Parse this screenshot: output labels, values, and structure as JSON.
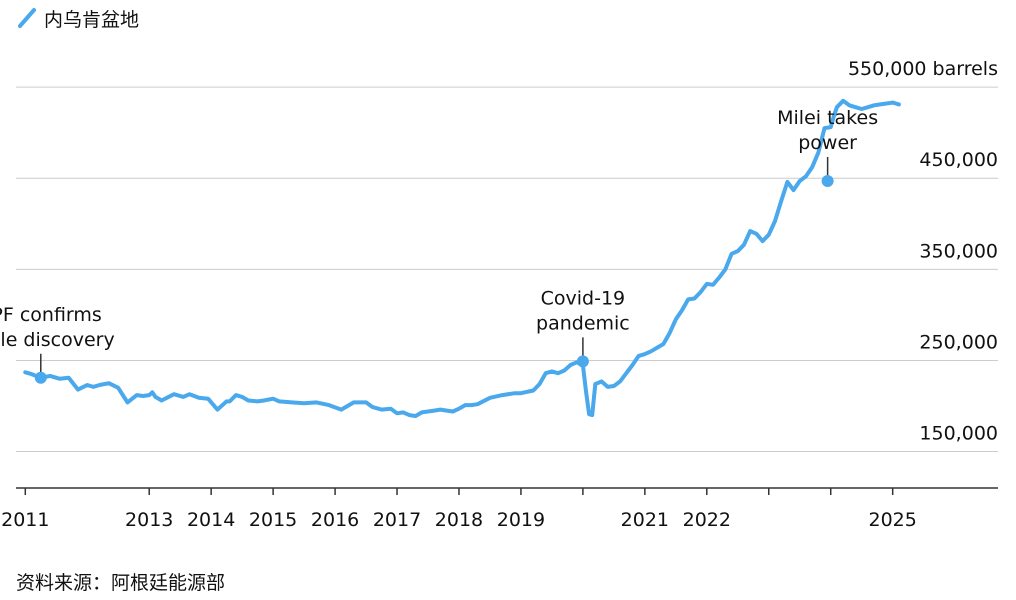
{
  "colors": {
    "series": "#4aa8ec",
    "grid": "#cccccc",
    "axis": "#333333",
    "text": "#111111"
  },
  "source": "资料来源：阿根廷能源部",
  "chart_data": {
    "type": "line",
    "title": "",
    "xlabel": "",
    "ylabel": "",
    "y_unit": "barrels",
    "ylim": [
      110000,
      560000
    ],
    "y_ticks": [
      {
        "value": 150000,
        "label": "150,000"
      },
      {
        "value": 250000,
        "label": "250,000"
      },
      {
        "value": 350000,
        "label": "350,000"
      },
      {
        "value": 450000,
        "label": "450,000"
      },
      {
        "value": 550000,
        "label": "550,000 barrels"
      }
    ],
    "xlim": [
      2010.85,
      2026.7
    ],
    "x_ticks": [
      {
        "value": 2011,
        "label": "2011"
      },
      {
        "value": 2013,
        "label": "2013"
      },
      {
        "value": 2014,
        "label": "2014"
      },
      {
        "value": 2015,
        "label": "2015"
      },
      {
        "value": 2016,
        "label": "2016"
      },
      {
        "value": 2017,
        "label": "2017"
      },
      {
        "value": 2018,
        "label": "2018"
      },
      {
        "value": 2019,
        "label": "2019"
      },
      {
        "value": 2021,
        "label": "2021"
      },
      {
        "value": 2022,
        "label": "2022"
      },
      {
        "value": 2025,
        "label": "2025"
      }
    ],
    "x_tick_marks": [
      2011,
      2013,
      2014,
      2015,
      2016,
      2017,
      2018,
      2019,
      2020,
      2021,
      2022,
      2023,
      2024,
      2025
    ],
    "grid": true,
    "legend": {
      "position": "top-left",
      "entries": [
        "内乌肯盆地"
      ]
    },
    "series": [
      {
        "name": "内乌肯盆地",
        "x": [
          2011.0,
          2011.1,
          2011.25,
          2011.4,
          2011.55,
          2011.7,
          2011.85,
          2012.0,
          2012.1,
          2012.2,
          2012.35,
          2012.5,
          2012.65,
          2012.8,
          2012.9,
          2013.0,
          2013.05,
          2013.1,
          2013.2,
          2013.4,
          2013.55,
          2013.65,
          2013.8,
          2013.95,
          2014.1,
          2014.25,
          2014.3,
          2014.4,
          2014.5,
          2014.6,
          2014.75,
          2014.85,
          2015.0,
          2015.1,
          2015.3,
          2015.5,
          2015.7,
          2015.9,
          2016.1,
          2016.3,
          2016.5,
          2016.6,
          2016.75,
          2016.9,
          2017.0,
          2017.1,
          2017.2,
          2017.3,
          2017.4,
          2017.5,
          2017.6,
          2017.7,
          2017.9,
          2018.0,
          2018.1,
          2018.2,
          2018.3,
          2018.5,
          2018.7,
          2018.9,
          2019.0,
          2019.2,
          2019.3,
          2019.4,
          2019.5,
          2019.6,
          2019.7,
          2019.8,
          2019.9,
          2020.0,
          2020.05,
          2020.1,
          2020.15,
          2020.2,
          2020.3,
          2020.4,
          2020.5,
          2020.6,
          2020.7,
          2020.8,
          2020.9,
          2021.0,
          2021.1,
          2021.3,
          2021.4,
          2021.5,
          2021.6,
          2021.7,
          2021.8,
          2021.9,
          2022.0,
          2022.1,
          2022.2,
          2022.3,
          2022.4,
          2022.5,
          2022.6,
          2022.7,
          2022.8,
          2022.9,
          2023.0,
          2023.1,
          2023.2,
          2023.3,
          2023.4,
          2023.5,
          2023.6,
          2023.7,
          2023.8,
          2023.9,
          2024.0,
          2024.05,
          2024.1,
          2024.2,
          2024.3,
          2024.4,
          2024.5,
          2024.6,
          2024.7,
          2024.8,
          2024.9,
          2025.0,
          2025.05,
          2025.1
        ],
        "y": [
          237000,
          235000,
          231000,
          233000,
          230000,
          231000,
          218000,
          223000,
          221000,
          223000,
          225000,
          220000,
          204000,
          212000,
          211000,
          212000,
          215000,
          210000,
          206000,
          213000,
          210000,
          213000,
          209000,
          208000,
          196000,
          205000,
          205000,
          212000,
          210000,
          206000,
          205000,
          206000,
          208000,
          205000,
          204000,
          203000,
          204000,
          201000,
          196000,
          204000,
          204000,
          199000,
          196000,
          197000,
          192000,
          193000,
          190000,
          189000,
          193000,
          194000,
          195000,
          196000,
          194000,
          197000,
          201000,
          201000,
          202000,
          209000,
          212000,
          214000,
          214000,
          217000,
          224000,
          236000,
          238000,
          236000,
          239000,
          245000,
          248000,
          245000,
          216000,
          191000,
          190000,
          224000,
          227000,
          221000,
          222000,
          227000,
          236000,
          245000,
          255000,
          257000,
          260000,
          268000,
          280000,
          295000,
          305000,
          317000,
          318000,
          325000,
          334000,
          333000,
          341000,
          350000,
          367000,
          370000,
          377000,
          392000,
          389000,
          381000,
          388000,
          403000,
          425000,
          446000,
          437000,
          447000,
          452000,
          462000,
          478000,
          505000,
          506000,
          518000,
          528000,
          535000,
          530000,
          528000,
          526000,
          528000,
          530000,
          531000,
          532000,
          533000,
          532000,
          531000
        ]
      }
    ],
    "annotations": [
      {
        "x": 2011.25,
        "y": 231000,
        "lines": [
          "YPF confirms",
          "shale discovery"
        ]
      },
      {
        "x": 2020.0,
        "y": 249000,
        "lines": [
          "Covid-19",
          "pandemic"
        ]
      },
      {
        "x": 2023.95,
        "y": 447000,
        "lines": [
          "Milei takes",
          "power"
        ]
      }
    ]
  }
}
